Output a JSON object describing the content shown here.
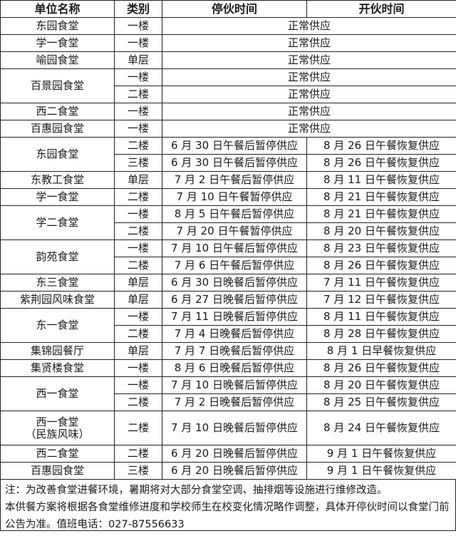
{
  "header": [
    "单位名称",
    "类别",
    "停伙时间",
    "开伙时间"
  ],
  "groups": [
    {
      "name": "东园食堂",
      "rows": [
        {
          "floor": "一楼",
          "normal": "正常供应"
        }
      ]
    },
    {
      "name": "学一食堂",
      "rows": [
        {
          "floor": "一楼",
          "normal": "正常供应"
        }
      ]
    },
    {
      "name": "喻园食堂",
      "rows": [
        {
          "floor": "单层",
          "normal": "正常供应"
        }
      ]
    },
    {
      "name": "百景园食堂",
      "rows": [
        {
          "floor": "一楼",
          "normal": "正常供应"
        },
        {
          "floor": "二楼",
          "normal": "正常供应"
        }
      ]
    },
    {
      "name": "西二食堂",
      "rows": [
        {
          "floor": "一楼",
          "normal": "正常供应"
        }
      ]
    },
    {
      "name": "百惠园食堂",
      "rows": [
        {
          "floor": "一楼",
          "normal": "正常供应"
        }
      ]
    },
    {
      "name": "东园食堂",
      "rows": [
        {
          "floor": "二楼",
          "stop": "6 月 30 日午餐后暂停供应",
          "open": "8 月 26 日午餐恢复供应"
        },
        {
          "floor": "三楼",
          "stop": "6 月 30 日午餐后暂停供应",
          "open": "8 月 26 日午餐恢复供应"
        }
      ]
    },
    {
      "name": "东教工食堂",
      "rows": [
        {
          "floor": "单层",
          "stop": "7 月 2 日午餐后暂停供应",
          "open": "8 月 11 日午餐恢复供应"
        }
      ]
    },
    {
      "name": "学一食堂",
      "rows": [
        {
          "floor": "二楼",
          "stop": "7 月 10 日午餐暂停供应",
          "open": "8 月 21 日午餐恢复供应"
        }
      ]
    },
    {
      "name": "学二食堂",
      "rows": [
        {
          "floor": "一楼",
          "stop": "8 月 5 日午餐后暂停供应",
          "open": "8 月 21 日午餐恢复供应"
        },
        {
          "floor": "二楼",
          "stop": "7 月 20 日午餐暂停供应",
          "open": "8 月 20 日午餐恢复供应"
        }
      ]
    },
    {
      "name": "韵苑食堂",
      "rows": [
        {
          "floor": "一楼",
          "stop": "7 月 10 日午餐后暂停供应",
          "open": "8 月 23 日午餐恢复供应"
        },
        {
          "floor": "二楼",
          "stop": "7 月 6 日午餐后暂停供应",
          "open": "8 月 26 日午餐恢复供应"
        }
      ]
    },
    {
      "name": "东三食堂",
      "rows": [
        {
          "floor": "单层",
          "stop": "6 月 30 日晚餐后暂停供应",
          "open": "7 月 11 日午餐恢复供应"
        }
      ]
    },
    {
      "name": "紫荆园风味食堂",
      "rows": [
        {
          "floor": "单层",
          "stop": "6 月 27 日晚餐后暂停供应",
          "open": "7 月 12 日午餐恢复供应"
        }
      ]
    },
    {
      "name": "东一食堂",
      "rows": [
        {
          "floor": "一楼",
          "stop": "7 月 11 日晚餐后暂停供应",
          "open": "8 月 11 日午餐恢复供应"
        },
        {
          "floor": "二楼",
          "stop": "7 月 4 日晚餐后暂停供应",
          "open": "8 月 28 日午餐恢复供应"
        }
      ]
    },
    {
      "name": "集锦园餐厅",
      "rows": [
        {
          "floor": "单层",
          "stop": "7 月 7 日晚餐后暂停供应",
          "open": "8 月 1 日早餐恢复供应"
        }
      ]
    },
    {
      "name": "集贤楼食堂",
      "rows": [
        {
          "floor": "一楼",
          "stop": "8 月 6 日晚餐后暂停供应",
          "open": "8 月 26 日午餐恢复供应"
        }
      ]
    },
    {
      "name": "西一食堂",
      "rows": [
        {
          "floor": "一楼",
          "stop": "7 月 10 日晚餐后暂停供应",
          "open": "8 月 20 日午餐恢复供应"
        },
        {
          "floor": "二楼",
          "stop": "7 月 2 日晚餐后暂停供应",
          "open": "8 月 25 日午餐恢复供应"
        }
      ]
    },
    {
      "name": "西一食堂",
      "subname": "（民族风味）",
      "rows": [
        {
          "floor": "二楼",
          "stop": "7 月 10 日晚餐后暂停供应",
          "open": "8 月 24 日午餐恢复供应"
        }
      ]
    },
    {
      "name": "西二食堂",
      "rows": [
        {
          "floor": "二楼",
          "stop": "6 月 20 日晚餐后暂停供应",
          "open": "9 月 1 日午餐恢复供应"
        }
      ]
    },
    {
      "name": "百惠园食堂",
      "rows": [
        {
          "floor": "三楼",
          "stop": "6 月 20 日晚餐后暂停供应",
          "open": "9 月 1 日午餐恢复供应"
        }
      ]
    }
  ],
  "note": {
    "line1": "注：为改善食堂进餐环境，暑期将对大部分食堂空调、抽排烟等设施进行维修改造。",
    "line2": "本供餐方案将根据各食堂维修进度和学校师生在校变化情况略作调整，具体开停伙时间以食堂门前公告为准。值班电话：027-87556633"
  }
}
